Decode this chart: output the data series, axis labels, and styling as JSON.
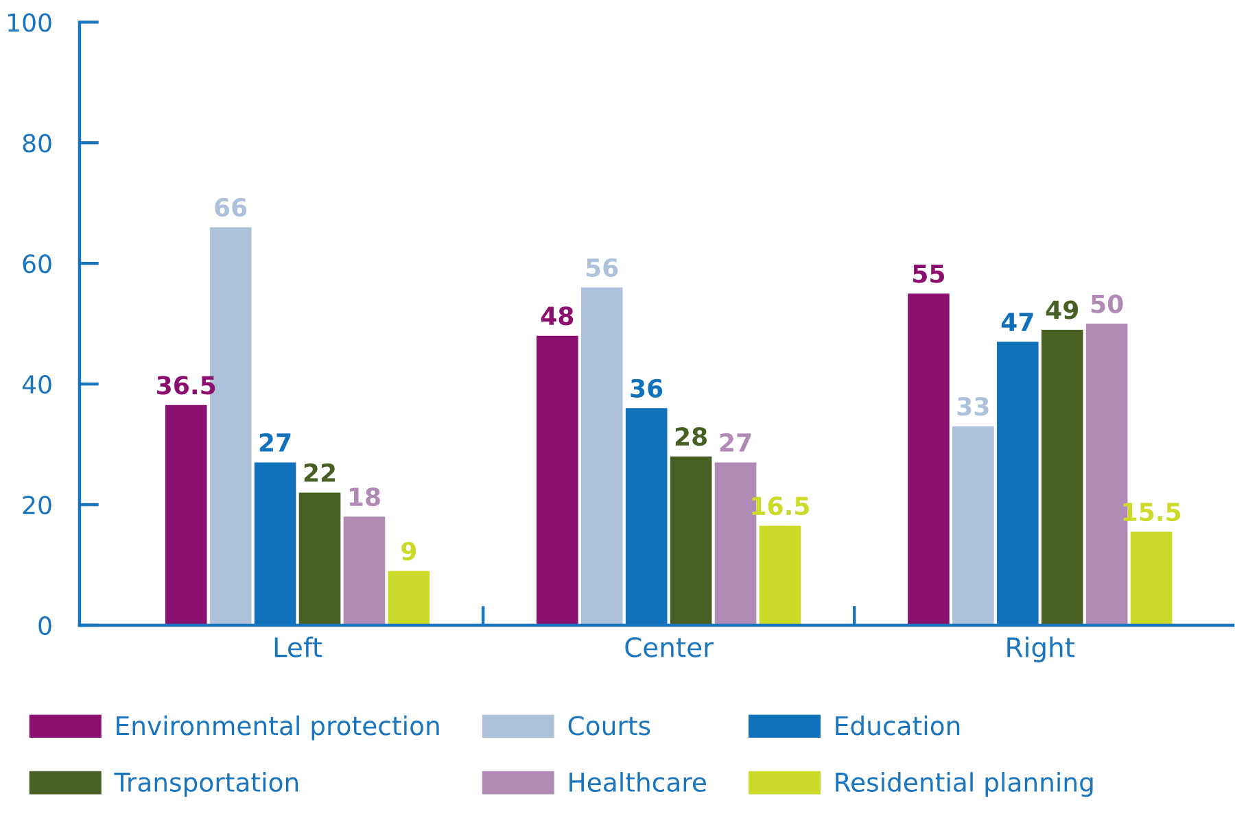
{
  "chart_data": {
    "type": "bar",
    "categories": [
      "Left",
      "Center",
      "Right"
    ],
    "series": [
      {
        "name": "Environmental protection",
        "color": "#8b0f6e",
        "values": [
          36.5,
          48,
          55
        ]
      },
      {
        "name": "Courts",
        "color": "#adc1db",
        "values": [
          66,
          56,
          33
        ]
      },
      {
        "name": "Education",
        "color": "#1172bb",
        "values": [
          27,
          36,
          47
        ]
      },
      {
        "name": "Transportation",
        "color": "#486024",
        "values": [
          22,
          28,
          49
        ]
      },
      {
        "name": "Healthcare",
        "color": "#b08ab5",
        "values": [
          18,
          27,
          50
        ]
      },
      {
        "name": "Residential planning",
        "color": "#ccdb2a",
        "values": [
          9,
          16.5,
          15.5
        ]
      }
    ],
    "ylim": [
      0,
      100
    ],
    "yticks": [
      0,
      20,
      40,
      60,
      80,
      100
    ],
    "data_labels": true,
    "legend": "bottom"
  }
}
